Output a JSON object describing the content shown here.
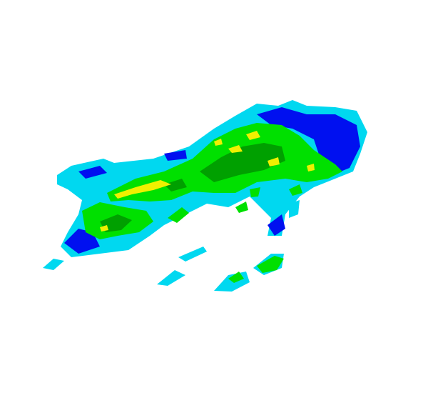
{
  "image": {
    "kind": "weather-radar-reflectivity",
    "background": "#ffffff",
    "legend_colors": {
      "cyan": "#00d8f0",
      "light_blue": "#0098f8",
      "blue": "#0010f0",
      "green": "#00e000",
      "dark_green": "#00a000",
      "yellow": "#f0f000",
      "orange": "#e8a000"
    }
  }
}
